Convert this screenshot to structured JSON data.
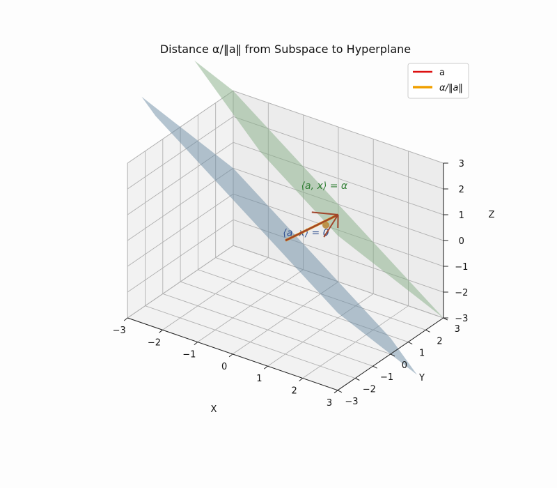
{
  "chart_data": {
    "type": "3d-surface",
    "title": "Distance α/‖a‖ from Subspace to Hyperplane",
    "xlabel": "X",
    "ylabel": "Y",
    "zlabel": "Z",
    "xlim": [
      -3,
      3
    ],
    "ylim": [
      -3,
      3
    ],
    "zlim": [
      -3,
      3
    ],
    "xticks": [
      "−3",
      "−2",
      "−1",
      "0",
      "1",
      "2",
      "3"
    ],
    "yticks": [
      "−3",
      "−2",
      "−1",
      "0",
      "1",
      "2",
      "3"
    ],
    "zticks": [
      "−3",
      "−2",
      "−1",
      "0",
      "1",
      "2",
      "3"
    ],
    "grid": true,
    "legend_position": "top-right",
    "planes": [
      {
        "label": "⟨a, x⟩ = 0",
        "equation": "x + y + z = 0",
        "normal": [
          1,
          1,
          1
        ],
        "offset": 0,
        "color": "#6c8ca3",
        "label_color": "#2f4f8f"
      },
      {
        "label": "⟨a, x⟩ = α",
        "equation": "x + y + z = 3",
        "normal": [
          1,
          1,
          1
        ],
        "offset": 3,
        "color": "#86ad86",
        "label_color": "#2e7d32"
      }
    ],
    "series": [
      {
        "name": "a",
        "type": "arrow",
        "from": [
          0,
          0,
          0
        ],
        "to": [
          1,
          1,
          1
        ],
        "color": "#dd1111"
      },
      {
        "name": "α/‖a‖",
        "type": "segment",
        "from": [
          0,
          0,
          0
        ],
        "to": [
          1,
          1,
          1
        ],
        "color": "#f0a000"
      }
    ],
    "origin_point": [
      0,
      0,
      0
    ],
    "annotations": [
      "⟨a, x⟩ = α",
      "⟨a, x⟩ = 0"
    ]
  }
}
